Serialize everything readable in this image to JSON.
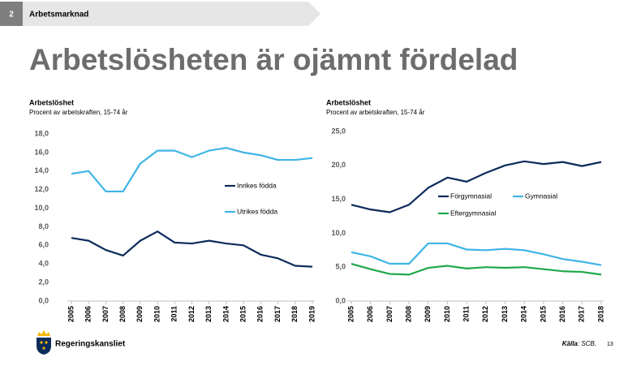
{
  "slide": {
    "section_number": "2",
    "section": "Arbetsmarknad",
    "title": "Arbetslösheten är ojämnt fördelad",
    "logo_text": "Regeringskansliet",
    "source_label": "Källa",
    "source_text": ": SCB.",
    "page_number": "13"
  },
  "chart_data": [
    {
      "type": "line",
      "title": "Arbetslöshet",
      "subtitle": "Procent av arbetskraften, 15-74 år",
      "grid": false,
      "categories": [
        "2005",
        "2006",
        "2007",
        "2008",
        "2009",
        "2010",
        "2011",
        "2012",
        "2013",
        "2014",
        "2015",
        "2016",
        "2017",
        "2018",
        "2019"
      ],
      "ylim": [
        0,
        18
      ],
      "yticks": [
        {
          "value": 0,
          "label": "0,0"
        },
        {
          "value": 2,
          "label": "2,0"
        },
        {
          "value": 4,
          "label": "4,0"
        },
        {
          "value": 6,
          "label": "6,0"
        },
        {
          "value": 8,
          "label": "8,0"
        },
        {
          "value": 10,
          "label": "10,0"
        },
        {
          "value": 12,
          "label": "12,0"
        },
        {
          "value": 14,
          "label": "14,0"
        },
        {
          "value": 16,
          "label": "16,0"
        },
        {
          "value": 18,
          "label": "18,0"
        }
      ],
      "series": [
        {
          "name": "Inrikes födda",
          "color": "#0d2b5b",
          "values": [
            6.8,
            6.5,
            5.5,
            4.9,
            6.5,
            7.5,
            6.3,
            6.2,
            6.5,
            6.2,
            6.0,
            5.0,
            4.6,
            3.8,
            3.7
          ]
        },
        {
          "name": "Utrikes födda",
          "color": "#3fb4e5",
          "values": [
            13.7,
            14.0,
            11.8,
            11.8,
            14.8,
            16.2,
            16.2,
            15.5,
            16.2,
            16.5,
            16.0,
            15.7,
            15.2,
            15.2,
            15.4
          ]
        }
      ]
    },
    {
      "type": "line",
      "title": "Arbetslöshet",
      "subtitle": "Procent av arbetskraften, 15-74 år",
      "grid": false,
      "categories": [
        "2005",
        "2006",
        "2007",
        "2008",
        "2009",
        "2010",
        "2011",
        "2012",
        "2013",
        "2014",
        "2015",
        "2016",
        "2017",
        "2018"
      ],
      "ylim": [
        0,
        25
      ],
      "yticks": [
        {
          "value": 0,
          "label": "0,0"
        },
        {
          "value": 5,
          "label": "5,0"
        },
        {
          "value": 10,
          "label": "10,0"
        },
        {
          "value": 15,
          "label": "15,0"
        },
        {
          "value": 20,
          "label": "20,0"
        },
        {
          "value": 25,
          "label": "25,0"
        }
      ],
      "series": [
        {
          "name": "Förgymnasial",
          "color": "#0d2b5b",
          "values": [
            14.2,
            13.5,
            13.1,
            14.2,
            16.7,
            18.2,
            17.6,
            18.9,
            20.0,
            20.6,
            20.2,
            20.5,
            19.9,
            20.5
          ]
        },
        {
          "name": "Gymnasial",
          "color": "#3fb4e5",
          "values": [
            7.2,
            6.6,
            5.5,
            5.5,
            8.5,
            8.5,
            7.6,
            7.5,
            7.7,
            7.5,
            6.9,
            6.2,
            5.8,
            5.3
          ]
        },
        {
          "name": "Eftergymnasial",
          "color": "#1fa84a",
          "values": [
            5.5,
            4.7,
            4.0,
            3.9,
            4.9,
            5.2,
            4.8,
            5.0,
            4.9,
            5.0,
            4.7,
            4.4,
            4.3,
            3.9
          ]
        }
      ]
    }
  ]
}
